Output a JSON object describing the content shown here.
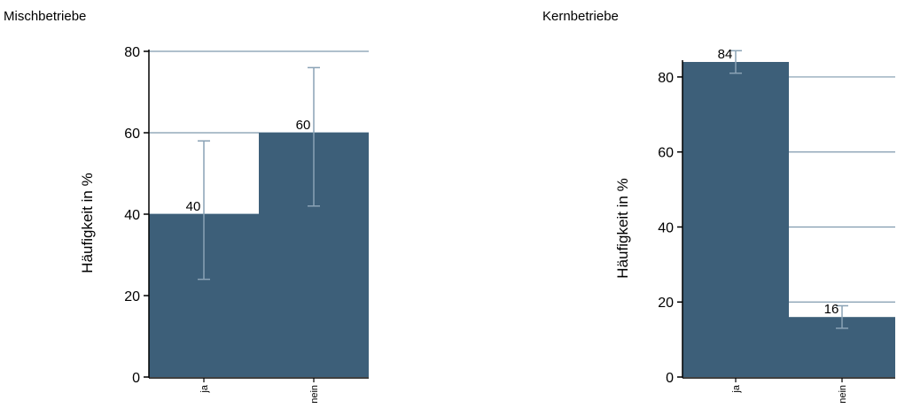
{
  "colors": {
    "bar": "#3d5f79",
    "grid": "#7f9aae",
    "error": "#8aa2b5",
    "axis": "#000000"
  },
  "chart_data": [
    {
      "type": "bar",
      "title": "Mischbetriebe",
      "ylabel": "Häufigkeit in %",
      "categories": [
        "ja",
        "nein"
      ],
      "values": [
        40,
        60
      ],
      "error_low": [
        24,
        42
      ],
      "error_high": [
        58,
        76
      ],
      "data_labels": [
        "40",
        "60"
      ],
      "yticks": [
        0,
        20,
        40,
        60,
        80
      ],
      "ylim": [
        0,
        80
      ],
      "grid": true
    },
    {
      "type": "bar",
      "title": "Kernbetriebe",
      "ylabel": "Häufigkeit in %",
      "categories": [
        "ja",
        "nein"
      ],
      "values": [
        84,
        16
      ],
      "error_low": [
        81,
        13
      ],
      "error_high": [
        87,
        19
      ],
      "data_labels": [
        "84",
        "16"
      ],
      "yticks": [
        0,
        20,
        40,
        60,
        80
      ],
      "ylim": [
        0,
        84
      ],
      "grid": true
    }
  ]
}
